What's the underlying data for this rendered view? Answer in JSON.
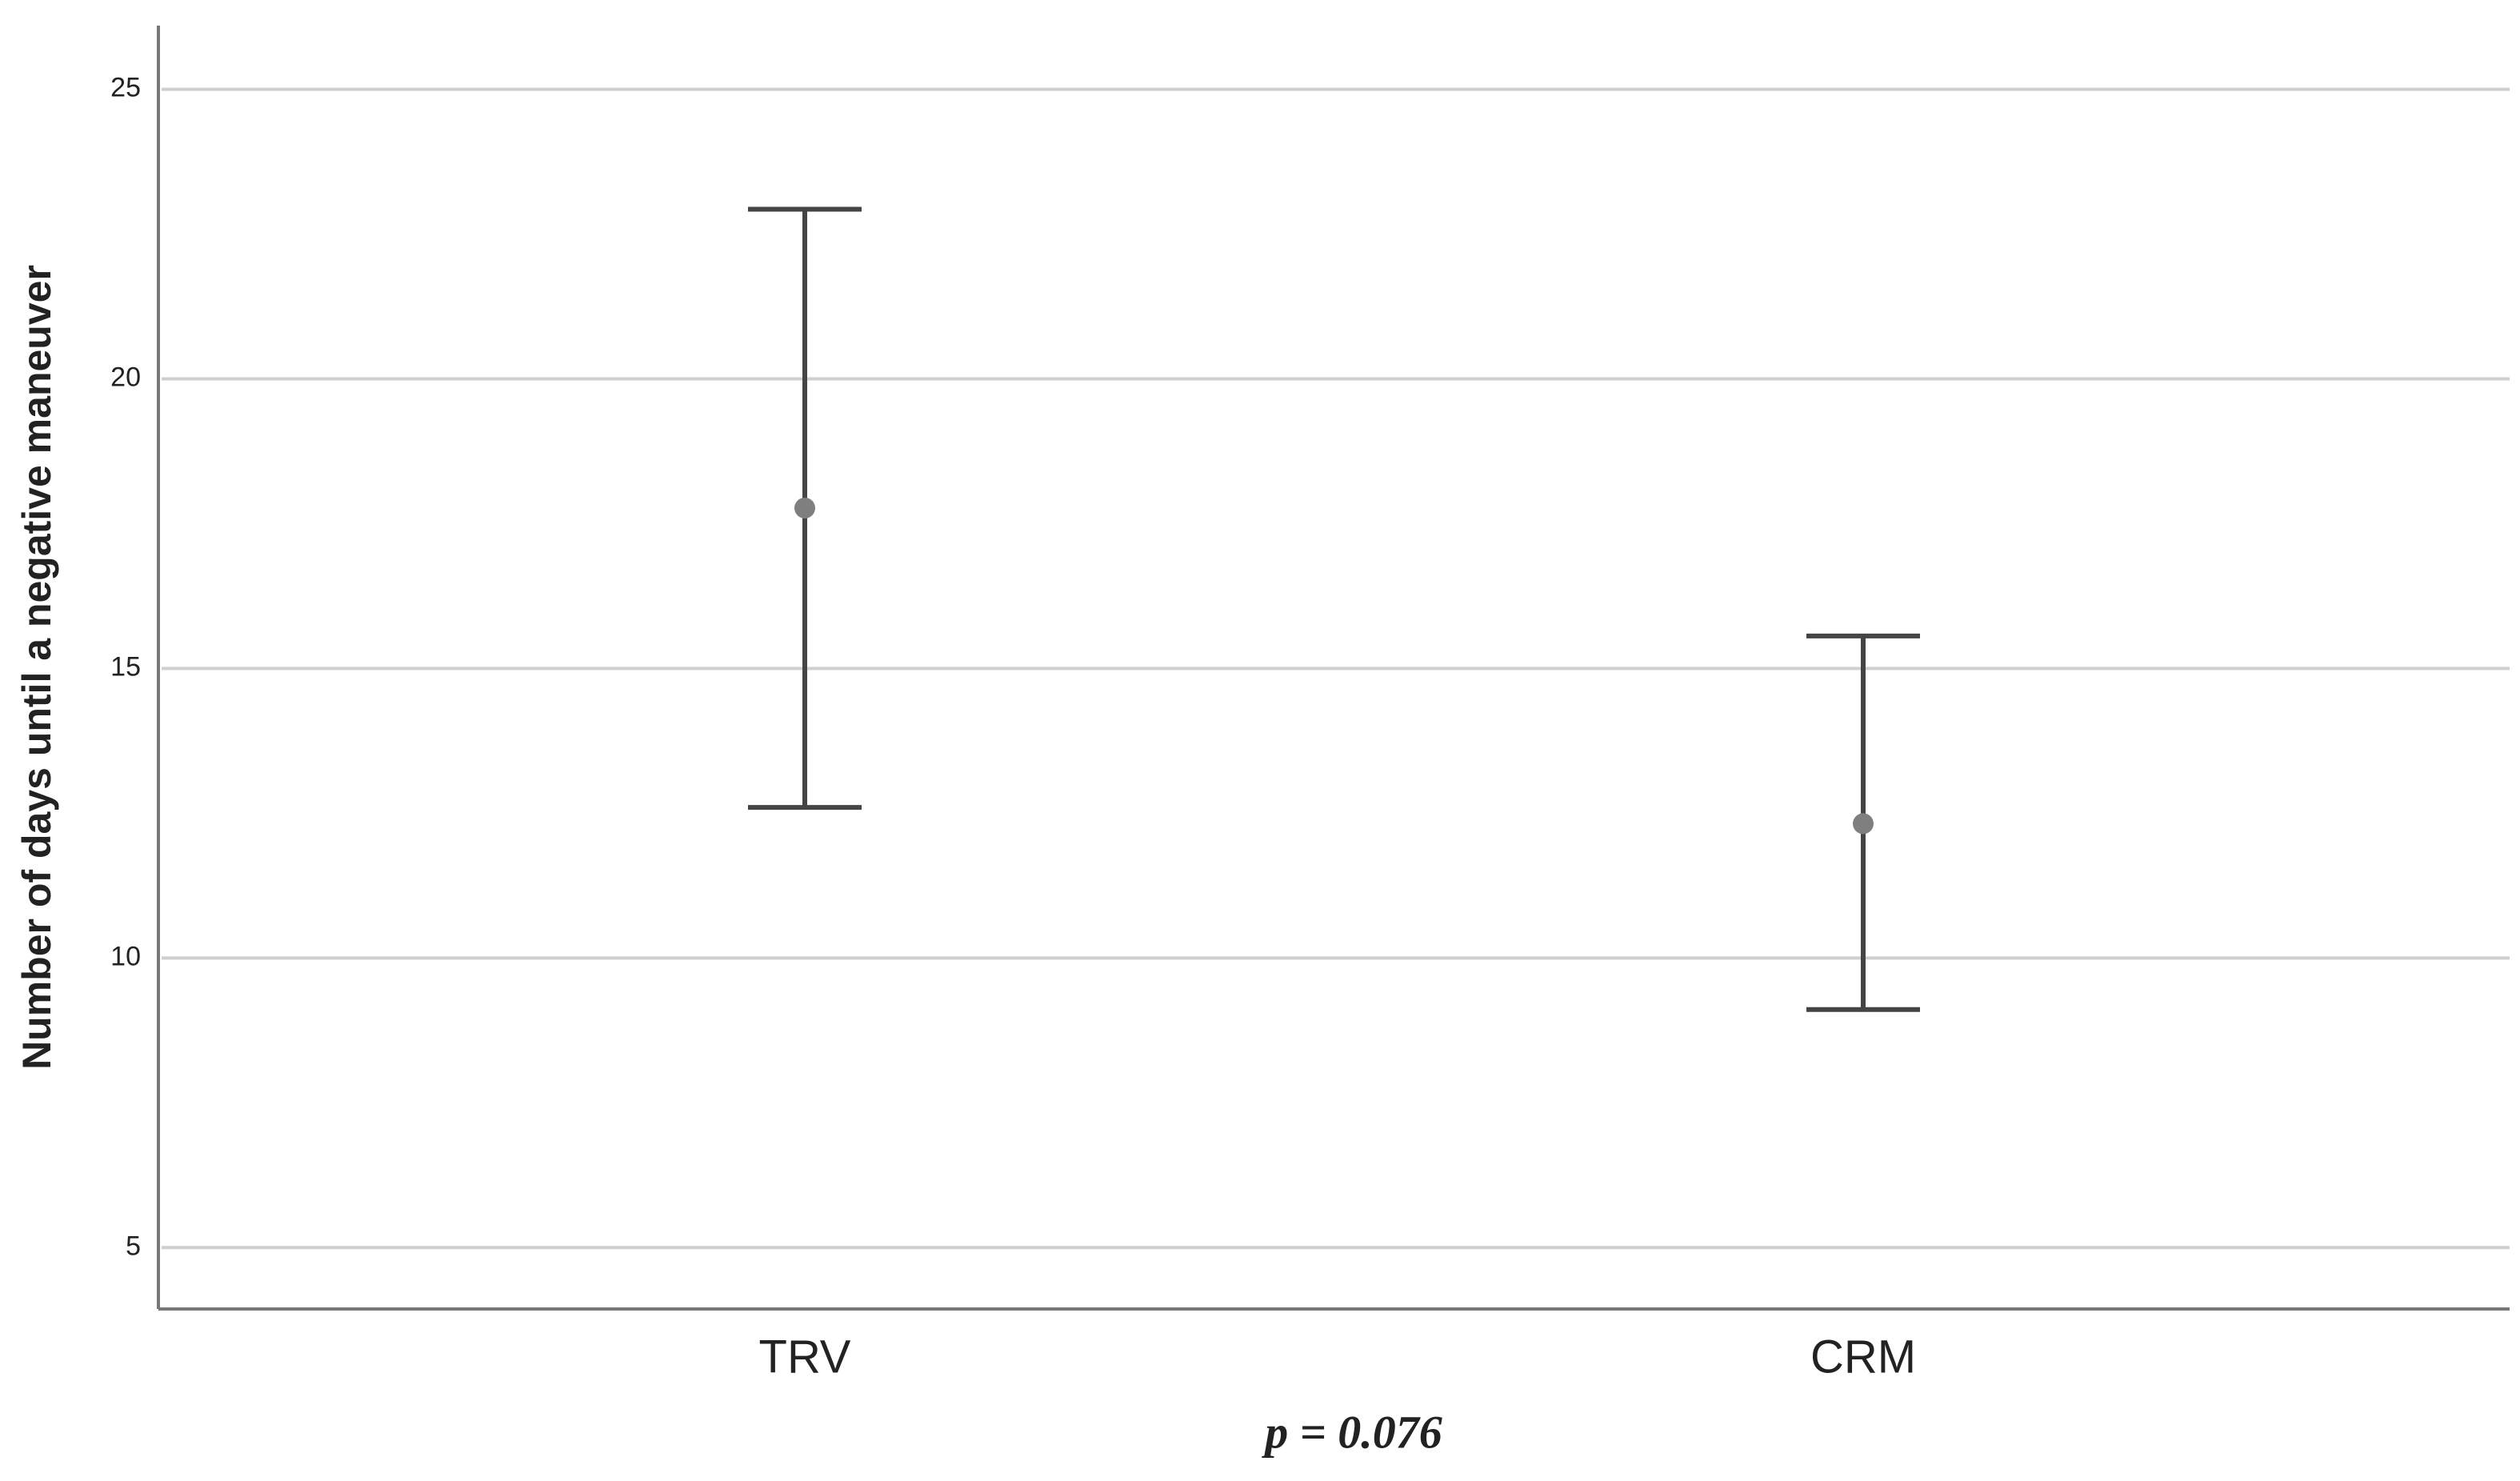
{
  "chart_data": {
    "type": "errorbar",
    "y_label": "Number of days until a negative maneuver",
    "annotation": "p = 0.076",
    "categories": [
      "TRV",
      "CRM"
    ],
    "values": [
      17.77,
      12.32
    ],
    "lower": [
      12.6,
      9.11
    ],
    "upper": [
      22.93,
      15.56
    ],
    "color": "#444444",
    "point_color": "#7f7f7f",
    "ylim": [
      3.94,
      26.1
    ],
    "yticks": [
      5,
      10,
      15,
      20,
      25
    ],
    "grid": true
  }
}
